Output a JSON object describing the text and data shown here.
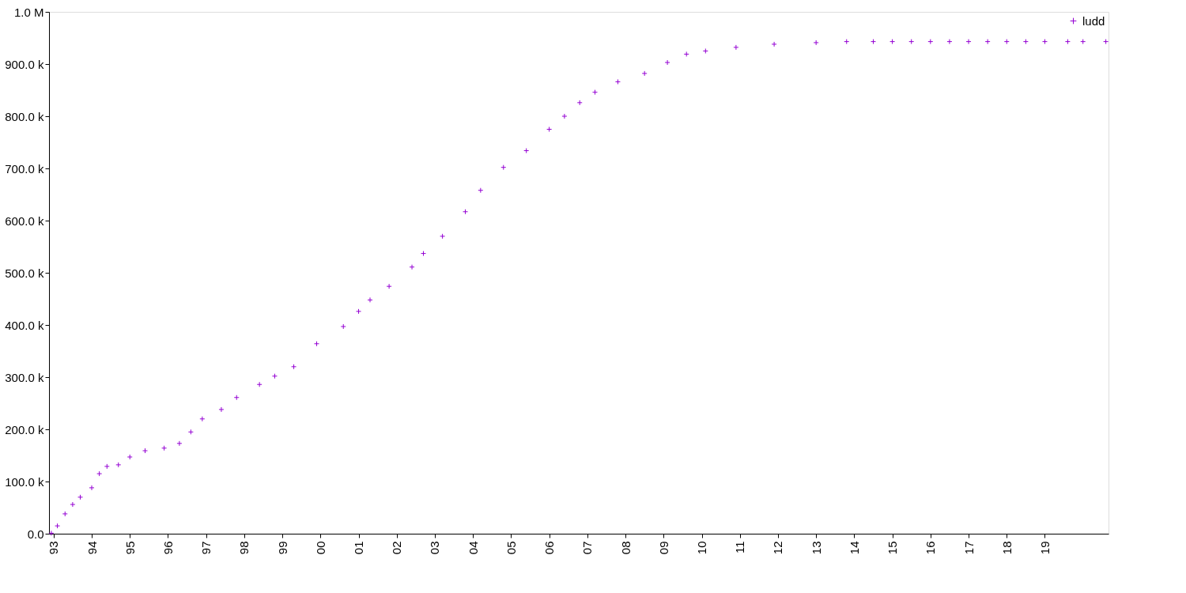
{
  "chart_data": {
    "type": "scatter",
    "legend": "top right",
    "marker": "cross",
    "grid": false,
    "xlim": [
      1992.88,
      2020.67
    ],
    "xticks": [
      {
        "value": 1993,
        "label": "93"
      },
      {
        "value": 1994,
        "label": "94"
      },
      {
        "value": 1995,
        "label": "95"
      },
      {
        "value": 1996,
        "label": "96"
      },
      {
        "value": 1997,
        "label": "97"
      },
      {
        "value": 1998,
        "label": "98"
      },
      {
        "value": 1999,
        "label": "99"
      },
      {
        "value": 2000,
        "label": "00"
      },
      {
        "value": 2001,
        "label": "01"
      },
      {
        "value": 2002,
        "label": "02"
      },
      {
        "value": 2003,
        "label": "03"
      },
      {
        "value": 2004,
        "label": "04"
      },
      {
        "value": 2005,
        "label": "05"
      },
      {
        "value": 2006,
        "label": "06"
      },
      {
        "value": 2007,
        "label": "07"
      },
      {
        "value": 2008,
        "label": "08"
      },
      {
        "value": 2009,
        "label": "09"
      },
      {
        "value": 2010,
        "label": "10"
      },
      {
        "value": 2011,
        "label": "11"
      },
      {
        "value": 2012,
        "label": "12"
      },
      {
        "value": 2013,
        "label": "13"
      },
      {
        "value": 2014,
        "label": "14"
      },
      {
        "value": 2015,
        "label": "15"
      },
      {
        "value": 2016,
        "label": "16"
      },
      {
        "value": 2017,
        "label": "17"
      },
      {
        "value": 2018,
        "label": "18"
      },
      {
        "value": 2019,
        "label": "19"
      }
    ],
    "ylim": [
      0,
      1000000
    ],
    "yticks": [
      {
        "value": 0,
        "label": "0.0"
      },
      {
        "value": 100000,
        "label": "100.0 k"
      },
      {
        "value": 200000,
        "label": "200.0 k"
      },
      {
        "value": 300000,
        "label": "300.0 k"
      },
      {
        "value": 400000,
        "label": "400.0 k"
      },
      {
        "value": 500000,
        "label": "500.0 k"
      },
      {
        "value": 600000,
        "label": "600.0 k"
      },
      {
        "value": 700000,
        "label": "700.0 k"
      },
      {
        "value": 800000,
        "label": "800.0 k"
      },
      {
        "value": 900000,
        "label": "900.0 k"
      },
      {
        "value": 1000000,
        "label": "1.0 M"
      }
    ],
    "series": [
      {
        "name": "ludd",
        "color": "#9400d3",
        "x": [
          1992.94,
          1993.1,
          1993.3,
          1993.5,
          1993.7,
          1994.0,
          1994.2,
          1994.4,
          1994.7,
          1995.0,
          1995.4,
          1995.9,
          1996.3,
          1996.6,
          1996.9,
          1997.4,
          1997.8,
          1998.4,
          1998.8,
          1999.3,
          1999.9,
          2000.6,
          2001.0,
          2001.3,
          2001.8,
          2002.4,
          2002.7,
          2003.2,
          2003.8,
          2004.2,
          2004.8,
          2005.4,
          2006.0,
          2006.4,
          2006.8,
          2007.2,
          2007.8,
          2008.5,
          2009.1,
          2009.6,
          2010.1,
          2010.9,
          2011.9,
          2013.0,
          2013.8,
          2014.5,
          2015.0,
          2015.5,
          2016.0,
          2016.5,
          2017.0,
          2017.5,
          2018.0,
          2018.5,
          2019.0,
          2019.6,
          2020.0,
          2020.6
        ],
        "values": [
          1000,
          15000,
          38000,
          56000,
          70000,
          88000,
          115000,
          129000,
          132000,
          147000,
          159000,
          164000,
          173000,
          195000,
          220000,
          238000,
          261000,
          286000,
          302000,
          320000,
          364000,
          397000,
          426000,
          448000,
          474000,
          511000,
          537000,
          570000,
          617000,
          658000,
          702000,
          734000,
          775000,
          800000,
          826000,
          846000,
          866000,
          882000,
          903000,
          919000,
          925000,
          932000,
          938000,
          941000,
          943000,
          943000,
          943000,
          943000,
          943000,
          943000,
          943000,
          943000,
          943000,
          943000,
          943000,
          943000,
          943000,
          943000
        ]
      }
    ]
  }
}
